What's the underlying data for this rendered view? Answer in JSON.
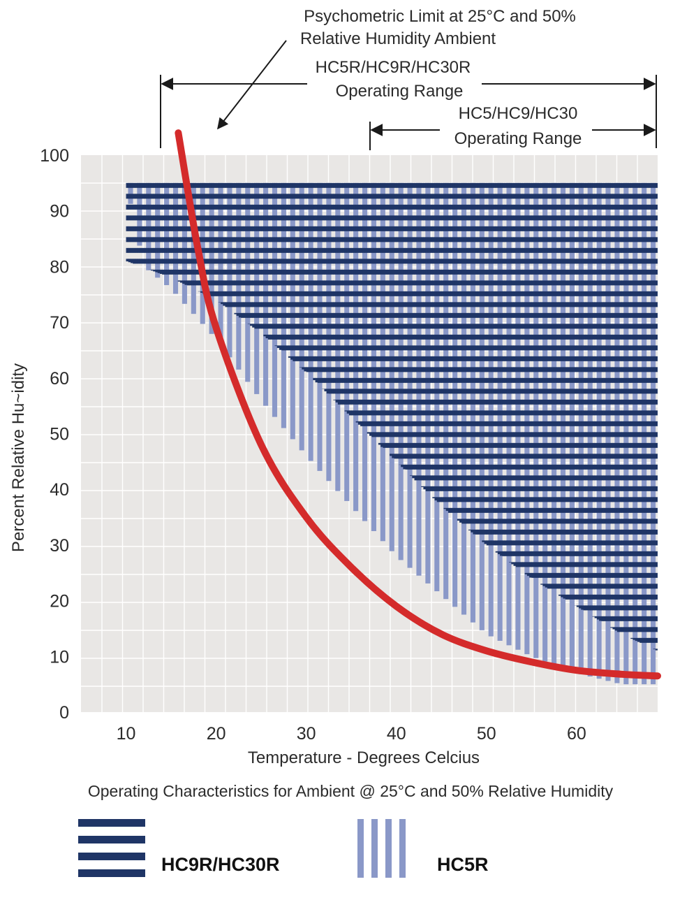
{
  "chart_data": {
    "type": "area",
    "xlabel": "Temperature - Degrees Celcius",
    "ylabel": "Percent Relative Hu~idity",
    "caption": "Operating Characteristics for Ambient @ 25°C and 50% Relative Humidity",
    "xlim": [
      5,
      69
    ],
    "ylim": [
      0,
      100
    ],
    "x_ticks": [
      "10",
      "20",
      "30",
      "40",
      "50",
      "60"
    ],
    "y_ticks": [
      "0",
      "10",
      "20",
      "30",
      "40",
      "50",
      "60",
      "70",
      "80",
      "90",
      "100"
    ],
    "grid": true,
    "series": [
      {
        "name": "HC9R/HC30R",
        "pattern": "horizontal-stripes",
        "color": "#1f3566",
        "upper_limit": 95,
        "lower_boundary": [
          [
            10,
            81
          ],
          [
            15,
            78
          ],
          [
            20,
            74
          ],
          [
            25,
            68
          ],
          [
            30,
            61
          ],
          [
            35,
            53
          ],
          [
            40,
            45
          ],
          [
            45,
            37
          ],
          [
            50,
            30
          ],
          [
            55,
            24
          ],
          [
            60,
            19
          ],
          [
            65,
            14
          ],
          [
            69,
            11
          ]
        ]
      },
      {
        "name": "HC5R",
        "pattern": "vertical-stripes",
        "color": "#8a98c8",
        "upper_limit": 95,
        "lower_boundary": [
          [
            10,
            95
          ],
          [
            12,
            80
          ],
          [
            15,
            76
          ],
          [
            20,
            67
          ],
          [
            25,
            56
          ],
          [
            30,
            46
          ],
          [
            35,
            37
          ],
          [
            40,
            28
          ],
          [
            45,
            21
          ],
          [
            50,
            14
          ],
          [
            55,
            10
          ],
          [
            60,
            7
          ],
          [
            65,
            5
          ],
          [
            69,
            5
          ]
        ]
      }
    ],
    "limit_curve": {
      "color": "#d42b2b",
      "points": [
        [
          15.8,
          104
        ],
        [
          18,
          83
        ],
        [
          20,
          69
        ],
        [
          25,
          48
        ],
        [
          30,
          35
        ],
        [
          35,
          26
        ],
        [
          40,
          19
        ],
        [
          45,
          14
        ],
        [
          50,
          11
        ],
        [
          55,
          9
        ],
        [
          60,
          7.5
        ],
        [
          65,
          6.8
        ],
        [
          69,
          6.5
        ]
      ]
    },
    "annotations": {
      "limit_label_line1": "Psychometric Limit at 25°C and 50%",
      "limit_label_line2": "Relative Humidity Ambient",
      "limit_arrow_target": [
        15.8,
        104
      ],
      "range_r": {
        "line1": "HC5R/HC9R/HC30R",
        "line2": "Operating Range",
        "from": 10,
        "to": 69
      },
      "range_std": {
        "line1": "HC5/HC9/HC30",
        "line2": "Operating Range",
        "from": 35,
        "to": 69
      }
    },
    "legend": {
      "placement": "bottom",
      "items": [
        {
          "label": "HC9R/HC30R",
          "pattern": "horizontal-stripes"
        },
        {
          "label": "HC5R",
          "pattern": "vertical-stripes"
        }
      ]
    },
    "colors": {
      "plot_background": "#e9e7e5",
      "grid": "#ffffff",
      "navy": "#1f3566",
      "periwinkle": "#8a98c8",
      "red": "#d42b2b"
    }
  }
}
